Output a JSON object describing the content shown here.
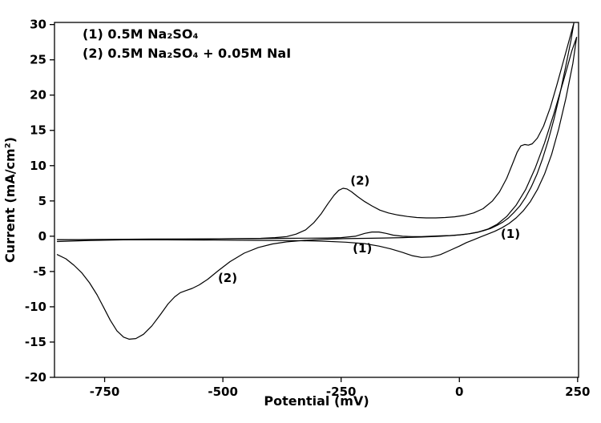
{
  "chart_data": {
    "type": "line",
    "title": "",
    "xlabel": "Potential (mV)",
    "ylabel": "Current (mA/cm²)",
    "xlim": [
      -856,
      252
    ],
    "ylim": [
      -20,
      30.3
    ],
    "x_ticks": [
      -750,
      -500,
      -250,
      0,
      250
    ],
    "y_ticks": [
      -20,
      -15,
      -10,
      -5,
      0,
      5,
      10,
      15,
      20,
      25,
      30
    ],
    "grid": false,
    "legend": {
      "position": "top-left",
      "entries": [
        "(1) 0.5M Na₂SO₄",
        "(2) 0.5M Na₂SO₄ + 0.05M NaI"
      ]
    },
    "annotations": [
      {
        "label": "(2)",
        "x": -210,
        "y": 7.9
      },
      {
        "label": "(1)",
        "x": -205,
        "y": -1.7
      },
      {
        "label": "(2)",
        "x": -490,
        "y": -5.9
      },
      {
        "label": "(1)",
        "x": 108,
        "y": 0.3
      }
    ],
    "series": [
      {
        "name": "(1) 0.5M Na₂SO₄",
        "color": "#000000",
        "points": [
          [
            -850,
            -0.5
          ],
          [
            -750,
            -0.45
          ],
          [
            -650,
            -0.4
          ],
          [
            -550,
            -0.38
          ],
          [
            -450,
            -0.35
          ],
          [
            -380,
            -0.3
          ],
          [
            -320,
            -0.28
          ],
          [
            -280,
            -0.25
          ],
          [
            -250,
            -0.2
          ],
          [
            -220,
            0.0
          ],
          [
            -200,
            0.4
          ],
          [
            -185,
            0.6
          ],
          [
            -170,
            0.6
          ],
          [
            -155,
            0.4
          ],
          [
            -140,
            0.15
          ],
          [
            -120,
            0.0
          ],
          [
            -100,
            -0.05
          ],
          [
            -80,
            -0.05
          ],
          [
            -60,
            0.0
          ],
          [
            -40,
            0.05
          ],
          [
            -20,
            0.1
          ],
          [
            0,
            0.2
          ],
          [
            20,
            0.35
          ],
          [
            40,
            0.6
          ],
          [
            60,
            1.0
          ],
          [
            80,
            1.7
          ],
          [
            100,
            2.8
          ],
          [
            120,
            4.4
          ],
          [
            140,
            6.6
          ],
          [
            160,
            9.6
          ],
          [
            180,
            13.2
          ],
          [
            200,
            17.4
          ],
          [
            220,
            22.0
          ],
          [
            238,
            26.3
          ],
          [
            248,
            28.2
          ],
          [
            240,
            24.5
          ],
          [
            225,
            19.5
          ],
          [
            210,
            15.2
          ],
          [
            195,
            11.6
          ],
          [
            180,
            8.8
          ],
          [
            165,
            6.6
          ],
          [
            150,
            4.9
          ],
          [
            135,
            3.6
          ],
          [
            120,
            2.6
          ],
          [
            105,
            1.8
          ],
          [
            90,
            1.2
          ],
          [
            75,
            0.7
          ],
          [
            60,
            0.3
          ],
          [
            45,
            -0.1
          ],
          [
            30,
            -0.5
          ],
          [
            15,
            -0.9
          ],
          [
            0,
            -1.4
          ],
          [
            -20,
            -2.0
          ],
          [
            -40,
            -2.6
          ],
          [
            -60,
            -2.95
          ],
          [
            -80,
            -3.0
          ],
          [
            -100,
            -2.75
          ],
          [
            -120,
            -2.3
          ],
          [
            -145,
            -1.8
          ],
          [
            -170,
            -1.4
          ],
          [
            -200,
            -1.05
          ],
          [
            -240,
            -0.85
          ],
          [
            -290,
            -0.7
          ],
          [
            -350,
            -0.62
          ],
          [
            -430,
            -0.58
          ],
          [
            -520,
            -0.55
          ],
          [
            -620,
            -0.52
          ],
          [
            -730,
            -0.5
          ],
          [
            -850,
            -0.48
          ]
        ]
      },
      {
        "name": "(2) 0.5M Na₂SO₄ + 0.05M NaI",
        "color": "#000000",
        "points": [
          [
            -850,
            -0.75
          ],
          [
            -780,
            -0.6
          ],
          [
            -700,
            -0.5
          ],
          [
            -620,
            -0.45
          ],
          [
            -540,
            -0.4
          ],
          [
            -470,
            -0.35
          ],
          [
            -420,
            -0.3
          ],
          [
            -390,
            -0.2
          ],
          [
            -365,
            -0.05
          ],
          [
            -345,
            0.3
          ],
          [
            -325,
            0.9
          ],
          [
            -308,
            1.9
          ],
          [
            -292,
            3.2
          ],
          [
            -278,
            4.6
          ],
          [
            -265,
            5.8
          ],
          [
            -255,
            6.5
          ],
          [
            -246,
            6.8
          ],
          [
            -238,
            6.7
          ],
          [
            -228,
            6.3
          ],
          [
            -215,
            5.6
          ],
          [
            -200,
            4.9
          ],
          [
            -185,
            4.3
          ],
          [
            -168,
            3.7
          ],
          [
            -150,
            3.3
          ],
          [
            -130,
            3.0
          ],
          [
            -110,
            2.8
          ],
          [
            -90,
            2.65
          ],
          [
            -70,
            2.6
          ],
          [
            -50,
            2.6
          ],
          [
            -30,
            2.65
          ],
          [
            -10,
            2.75
          ],
          [
            10,
            2.95
          ],
          [
            30,
            3.3
          ],
          [
            50,
            3.9
          ],
          [
            70,
            5.0
          ],
          [
            85,
            6.3
          ],
          [
            100,
            8.2
          ],
          [
            112,
            10.2
          ],
          [
            122,
            11.9
          ],
          [
            130,
            12.8
          ],
          [
            138,
            13.0
          ],
          [
            146,
            12.9
          ],
          [
            154,
            13.1
          ],
          [
            165,
            13.9
          ],
          [
            178,
            15.6
          ],
          [
            192,
            18.2
          ],
          [
            206,
            21.4
          ],
          [
            220,
            24.8
          ],
          [
            233,
            28.0
          ],
          [
            242,
            30.2
          ],
          [
            236,
            27.8
          ],
          [
            224,
            23.8
          ],
          [
            212,
            20.0
          ],
          [
            200,
            16.6
          ],
          [
            188,
            13.6
          ],
          [
            176,
            11.0
          ],
          [
            164,
            8.8
          ],
          [
            152,
            7.0
          ],
          [
            140,
            5.5
          ],
          [
            128,
            4.3
          ],
          [
            116,
            3.4
          ],
          [
            104,
            2.6
          ],
          [
            92,
            2.0
          ],
          [
            80,
            1.55
          ],
          [
            66,
            1.1
          ],
          [
            52,
            0.8
          ],
          [
            38,
            0.55
          ],
          [
            24,
            0.38
          ],
          [
            10,
            0.25
          ],
          [
            -10,
            0.12
          ],
          [
            -40,
            0.0
          ],
          [
            -80,
            -0.12
          ],
          [
            -120,
            -0.2
          ],
          [
            -160,
            -0.25
          ],
          [
            -200,
            -0.3
          ],
          [
            -245,
            -0.35
          ],
          [
            -290,
            -0.45
          ],
          [
            -330,
            -0.6
          ],
          [
            -365,
            -0.8
          ],
          [
            -395,
            -1.1
          ],
          [
            -425,
            -1.6
          ],
          [
            -455,
            -2.4
          ],
          [
            -485,
            -3.6
          ],
          [
            -510,
            -4.9
          ],
          [
            -532,
            -6.1
          ],
          [
            -550,
            -6.9
          ],
          [
            -565,
            -7.4
          ],
          [
            -578,
            -7.7
          ],
          [
            -590,
            -8.0
          ],
          [
            -602,
            -8.6
          ],
          [
            -616,
            -9.6
          ],
          [
            -632,
            -11.1
          ],
          [
            -650,
            -12.7
          ],
          [
            -668,
            -13.9
          ],
          [
            -684,
            -14.5
          ],
          [
            -698,
            -14.6
          ],
          [
            -710,
            -14.3
          ],
          [
            -724,
            -13.4
          ],
          [
            -738,
            -11.9
          ],
          [
            -752,
            -10.1
          ],
          [
            -766,
            -8.3
          ],
          [
            -782,
            -6.6
          ],
          [
            -798,
            -5.2
          ],
          [
            -815,
            -4.1
          ],
          [
            -832,
            -3.2
          ],
          [
            -850,
            -2.6
          ]
        ]
      }
    ]
  }
}
